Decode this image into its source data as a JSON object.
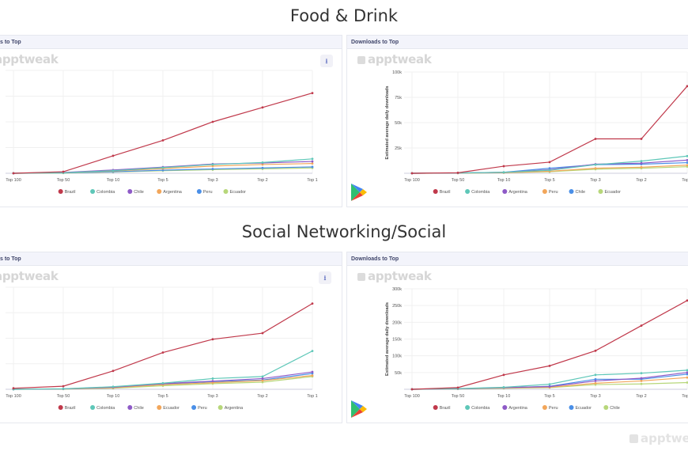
{
  "sections": [
    {
      "title": "Food & Drink"
    },
    {
      "title": "Social Networking/Social"
    }
  ],
  "brand": "apptweak",
  "download_icon": "download-icon",
  "store_icon": "google-play-icon",
  "footer": {
    "brand": "apptwe"
  },
  "chart_data": [
    {
      "type": "line",
      "header": "s to Top",
      "ylabel": "",
      "categories": [
        "Top 100",
        "Top 50",
        "Top 10",
        "Top 5",
        "Top 3",
        "Top 2",
        "Top 1"
      ],
      "ylim": [
        0,
        100000
      ],
      "ticks": [],
      "series": [
        {
          "name": "Brazil",
          "color": "#c0394b",
          "values": [
            0,
            1500,
            17000,
            32000,
            50000,
            64000,
            78000
          ]
        },
        {
          "name": "Colombia",
          "color": "#5ec7b8",
          "values": [
            0,
            500,
            2500,
            5500,
            8500,
            10500,
            14000
          ]
        },
        {
          "name": "Chile",
          "color": "#8e5ac7",
          "values": [
            0,
            800,
            3200,
            6000,
            9000,
            10000,
            11500
          ]
        },
        {
          "name": "Argentina",
          "color": "#f2a65a",
          "values": [
            0,
            400,
            2200,
            4500,
            7000,
            8500,
            9500
          ]
        },
        {
          "name": "Peru",
          "color": "#4a8fe7",
          "values": [
            0,
            300,
            1500,
            3000,
            4200,
            5200,
            6200
          ]
        },
        {
          "name": "Ecuador",
          "color": "#b7d77a",
          "values": [
            0,
            200,
            1200,
            2500,
            3500,
            4300,
            5200
          ]
        }
      ]
    },
    {
      "type": "line",
      "header": "Downloads to Top",
      "ylabel": "Estimated average daily downloads",
      "categories": [
        "Top 100",
        "Top 50",
        "Top 10",
        "Top 5",
        "Top 3",
        "Top 2",
        "Top 1"
      ],
      "ylim": [
        0,
        100000
      ],
      "ticks": [
        "25k",
        "50k",
        "75k",
        "100k"
      ],
      "series": [
        {
          "name": "Brazil",
          "color": "#c0394b",
          "values": [
            0,
            500,
            7000,
            11000,
            34000,
            34000,
            86000
          ]
        },
        {
          "name": "Colombia",
          "color": "#5ec7b8",
          "values": [
            0,
            300,
            1000,
            3000,
            8500,
            12000,
            17000
          ]
        },
        {
          "name": "Argentina",
          "color": "#8e5ac7",
          "values": [
            0,
            300,
            900,
            3500,
            9000,
            10000,
            13000
          ]
        },
        {
          "name": "Peru",
          "color": "#f2a65a",
          "values": [
            0,
            200,
            600,
            2000,
            5000,
            6000,
            8000
          ]
        },
        {
          "name": "Chile",
          "color": "#4a8fe7",
          "values": [
            0,
            250,
            1000,
            5000,
            8500,
            9000,
            10500
          ]
        },
        {
          "name": "Ecuador",
          "color": "#b7d77a",
          "values": [
            0,
            150,
            500,
            1500,
            4000,
            5000,
            6500
          ]
        }
      ]
    },
    {
      "type": "line",
      "header": "s to Top",
      "ylabel": "",
      "categories": [
        "Top 100",
        "Top 50",
        "Top 10",
        "Top 5",
        "Top 3",
        "Top 2",
        "Top 1"
      ],
      "ylim": [
        0,
        100000
      ],
      "ticks": [],
      "series": [
        {
          "name": "Brazil",
          "color": "#c0394b",
          "values": [
            1000,
            3000,
            18000,
            36000,
            49000,
            55000,
            84000
          ]
        },
        {
          "name": "Colombia",
          "color": "#5ec7b8",
          "values": [
            0,
            500,
            2500,
            6000,
            10500,
            12500,
            37500
          ]
        },
        {
          "name": "Chile",
          "color": "#8e5ac7",
          "values": [
            0,
            400,
            2000,
            5500,
            8000,
            10500,
            17000
          ]
        },
        {
          "name": "Ecuador",
          "color": "#f2a65a",
          "values": [
            0,
            300,
            1500,
            4500,
            6500,
            8500,
            13500
          ]
        },
        {
          "name": "Peru",
          "color": "#4a8fe7",
          "values": [
            0,
            350,
            1800,
            5000,
            7500,
            9000,
            15500
          ]
        },
        {
          "name": "Argentina",
          "color": "#b7d77a",
          "values": [
            0,
            200,
            1000,
            3500,
            5500,
            7000,
            12500
          ]
        }
      ]
    },
    {
      "type": "line",
      "header": "Downloads to Top",
      "ylabel": "Estimated average daily downloads",
      "categories": [
        "Top 100",
        "Top 50",
        "Top 10",
        "Top 5",
        "Top 3",
        "Top 2",
        "Top 1"
      ],
      "ylim": [
        0,
        300000
      ],
      "ticks": [
        "50k",
        "100k",
        "150k",
        "200k",
        "250k",
        "300k"
      ],
      "series": [
        {
          "name": "Brazil",
          "color": "#c0394b",
          "values": [
            0,
            5000,
            43000,
            70000,
            115000,
            190000,
            265000
          ]
        },
        {
          "name": "Colombia",
          "color": "#5ec7b8",
          "values": [
            0,
            2000,
            6000,
            15000,
            43000,
            48000,
            57000
          ]
        },
        {
          "name": "Argentina",
          "color": "#8e5ac7",
          "values": [
            0,
            1500,
            5000,
            8000,
            25000,
            33000,
            50000
          ]
        },
        {
          "name": "Peru",
          "color": "#f2a65a",
          "values": [
            0,
            1000,
            4000,
            6000,
            18000,
            25000,
            35000
          ]
        },
        {
          "name": "Ecuador",
          "color": "#4a8fe7",
          "values": [
            0,
            1200,
            4500,
            9000,
            30000,
            30000,
            45000
          ]
        },
        {
          "name": "Chile",
          "color": "#b7d77a",
          "values": [
            0,
            800,
            3000,
            5000,
            14000,
            16000,
            20000
          ]
        }
      ]
    }
  ]
}
